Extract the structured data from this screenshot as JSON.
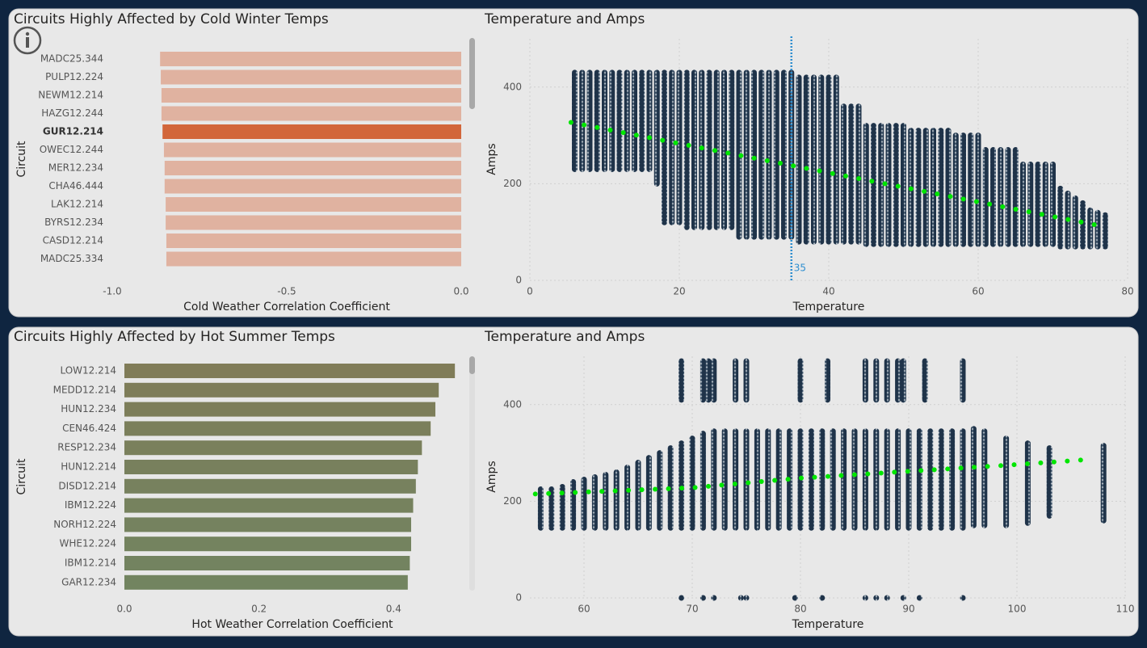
{
  "chart_data": [
    {
      "type": "bar",
      "title": "Circuits Highly Affected by Cold Winter Temps",
      "x_label": "Cold Weather Correlation Coefficient",
      "y_label": "Circuit",
      "categories": [
        "MADC25.344",
        "PULP12.224",
        "NEWM12.214",
        "HAZG12.244",
        "GUR12.214",
        "OWEC12.244",
        "MER12.234",
        "CHA46.444",
        "LAK12.214",
        "BYRS12.234",
        "CASD12.214",
        "MADC25.334"
      ],
      "values": [
        -0.863,
        -0.861,
        -0.859,
        -0.859,
        -0.856,
        -0.852,
        -0.85,
        -0.85,
        -0.847,
        -0.847,
        -0.845,
        -0.845
      ],
      "colors": [
        "#e0b2a0",
        "#e0b2a0",
        "#e0b2a0",
        "#e0b2a0",
        "#d2663a",
        "#e0b2a0",
        "#e0b2a0",
        "#e0b2a0",
        "#e0b2a0",
        "#e0b2a0",
        "#e0b2a0",
        "#e0b2a0"
      ],
      "selected": "GUR12.214",
      "xlim": [
        -1,
        0
      ],
      "xticks": [
        {
          "value": -1,
          "label": "-1.0"
        },
        {
          "value": -0.5,
          "label": "-0.5"
        },
        {
          "value": 0,
          "label": "0.0"
        }
      ]
    },
    {
      "type": "scatter",
      "title": "Temperature and Amps",
      "x_label": "Temperature",
      "y_label": "Amps",
      "color": "#1f3349",
      "grid": true,
      "xlim": [
        0,
        80
      ],
      "xticks": [
        0,
        20,
        40,
        60,
        80
      ],
      "ylim": [
        0,
        500
      ],
      "yticks": [
        0,
        200,
        400
      ],
      "reference_x": 35,
      "reference_color": "#2f8fd0",
      "columns": [
        {
          "x": [
            6,
            7,
            8,
            9,
            10,
            11,
            12,
            13,
            14,
            15,
            16,
            17,
            18,
            19,
            20,
            21,
            22,
            23,
            24,
            25,
            26,
            27,
            28,
            29,
            30,
            31,
            32,
            33,
            34,
            35,
            36,
            37,
            38,
            39,
            40,
            41,
            42,
            43,
            44,
            45,
            46,
            47,
            48,
            49,
            50,
            51,
            52,
            53,
            54,
            55,
            56,
            57,
            58,
            59,
            60,
            61,
            62,
            63,
            64,
            65,
            66,
            67,
            68,
            69,
            70,
            71,
            72,
            73,
            74,
            75,
            76,
            77
          ],
          "low": [
            230,
            230,
            230,
            230,
            230,
            230,
            230,
            230,
            230,
            230,
            230,
            200,
            120,
            120,
            120,
            110,
            110,
            110,
            110,
            110,
            110,
            110,
            90,
            90,
            90,
            90,
            90,
            90,
            90,
            90,
            80,
            80,
            80,
            80,
            80,
            80,
            80,
            80,
            80,
            75,
            75,
            75,
            75,
            75,
            75,
            75,
            75,
            75,
            75,
            75,
            75,
            75,
            75,
            75,
            75,
            75,
            75,
            75,
            75,
            75,
            75,
            75,
            75,
            75,
            75,
            70,
            70,
            70,
            70,
            70,
            70,
            70
          ],
          "high": [
            430,
            430,
            430,
            430,
            430,
            430,
            430,
            430,
            430,
            430,
            430,
            430,
            430,
            430,
            430,
            430,
            430,
            430,
            430,
            430,
            430,
            430,
            430,
            430,
            430,
            430,
            430,
            430,
            430,
            430,
            420,
            420,
            420,
            420,
            420,
            420,
            360,
            360,
            360,
            320,
            320,
            320,
            320,
            320,
            320,
            310,
            310,
            310,
            310,
            310,
            310,
            300,
            300,
            300,
            300,
            270,
            270,
            270,
            270,
            270,
            240,
            240,
            240,
            240,
            240,
            190,
            180,
            170,
            160,
            145,
            140,
            135
          ]
        }
      ],
      "trend": {
        "x": [
          5.5,
          77
        ],
        "values": [
          327,
          111
        ],
        "color": "#00e600"
      }
    },
    {
      "type": "bar",
      "title": "Circuits Highly Affected by Hot Summer Temps",
      "x_label": "Hot Weather Correlation Coefficient",
      "y_label": "Circuit",
      "categories": [
        "LOW12.214",
        "MEDD12.214",
        "HUN12.234",
        "CEN46.424",
        "RESP12.234",
        "HUN12.214",
        "DISD12.214",
        "IBM12.224",
        "NORH12.224",
        "WHE12.224",
        "IBM12.214",
        "GAR12.234"
      ],
      "values": [
        0.491,
        0.467,
        0.462,
        0.455,
        0.442,
        0.436,
        0.433,
        0.429,
        0.426,
        0.426,
        0.424,
        0.421
      ],
      "colors": [
        "#807c58",
        "#7e7d59",
        "#7d7e5a",
        "#7b7f5b",
        "#7a805c",
        "#78805d",
        "#77815e",
        "#76825e",
        "#75825f",
        "#74835f",
        "#738360",
        "#728460"
      ],
      "xlim": [
        0,
        0.51
      ],
      "xticks": [
        {
          "value": 0,
          "label": "0.0"
        },
        {
          "value": 0.2,
          "label": "0.2"
        },
        {
          "value": 0.4,
          "label": "0.4"
        }
      ]
    },
    {
      "type": "scatter",
      "title": "Temperature and Amps",
      "x_label": "Temperature",
      "y_label": "Amps",
      "color": "#1f3349",
      "grid": true,
      "xlim": [
        55,
        110
      ],
      "xticks": [
        60,
        70,
        80,
        90,
        100,
        110
      ],
      "ylim": [
        0,
        500
      ],
      "yticks": [
        0,
        200,
        400
      ],
      "columns": [
        {
          "x": [
            56,
            57,
            58,
            59,
            60,
            61,
            62,
            63,
            64,
            65,
            66,
            67,
            68,
            69,
            70,
            71,
            72,
            73,
            74,
            75,
            76,
            77,
            78,
            79,
            80,
            81,
            82,
            83,
            84,
            85,
            86,
            87,
            88,
            89,
            90,
            91,
            92,
            93,
            94,
            95,
            96,
            97,
            99,
            101,
            103,
            108
          ],
          "low": [
            145,
            145,
            145,
            145,
            145,
            145,
            145,
            145,
            145,
            145,
            145,
            145,
            145,
            145,
            145,
            145,
            145,
            145,
            145,
            145,
            145,
            145,
            145,
            145,
            145,
            145,
            145,
            145,
            145,
            145,
            145,
            145,
            145,
            145,
            145,
            145,
            145,
            145,
            145,
            145,
            150,
            150,
            150,
            155,
            170,
            160
          ],
          "high": [
            225,
            225,
            230,
            240,
            245,
            250,
            255,
            260,
            270,
            280,
            290,
            300,
            310,
            320,
            330,
            340,
            345,
            345,
            345,
            345,
            345,
            345,
            345,
            345,
            345,
            345,
            345,
            345,
            345,
            345,
            345,
            345,
            345,
            345,
            345,
            345,
            345,
            345,
            345,
            345,
            350,
            345,
            330,
            320,
            310,
            315
          ]
        },
        {
          "x": [
            69,
            71,
            71.5,
            72,
            74,
            75,
            80,
            82.5,
            86,
            87,
            88,
            89,
            89.5,
            91.5,
            95
          ],
          "low": [
            410,
            410,
            410,
            410,
            410,
            410,
            410,
            410,
            410,
            410,
            410,
            410,
            410,
            410,
            410
          ],
          "high": [
            490,
            490,
            490,
            490,
            490,
            490,
            490,
            490,
            490,
            490,
            490,
            490,
            490,
            490,
            490
          ]
        },
        {
          "x": [
            69,
            71,
            72,
            74.5,
            75,
            79.5,
            82,
            86,
            87,
            88,
            89.5,
            91,
            95
          ],
          "low": [
            0,
            0,
            0,
            0,
            0,
            0,
            0,
            0,
            0,
            0,
            0,
            0,
            0
          ],
          "high": [
            0,
            0,
            0,
            0,
            0,
            0,
            0,
            0,
            0,
            0,
            0,
            0,
            0
          ]
        }
      ],
      "trend": {
        "x": [
          55.5,
          70,
          80,
          90,
          100,
          107
        ],
        "values": [
          215,
          228,
          248,
          262,
          276,
          287
        ],
        "color": "#00e600"
      }
    }
  ]
}
